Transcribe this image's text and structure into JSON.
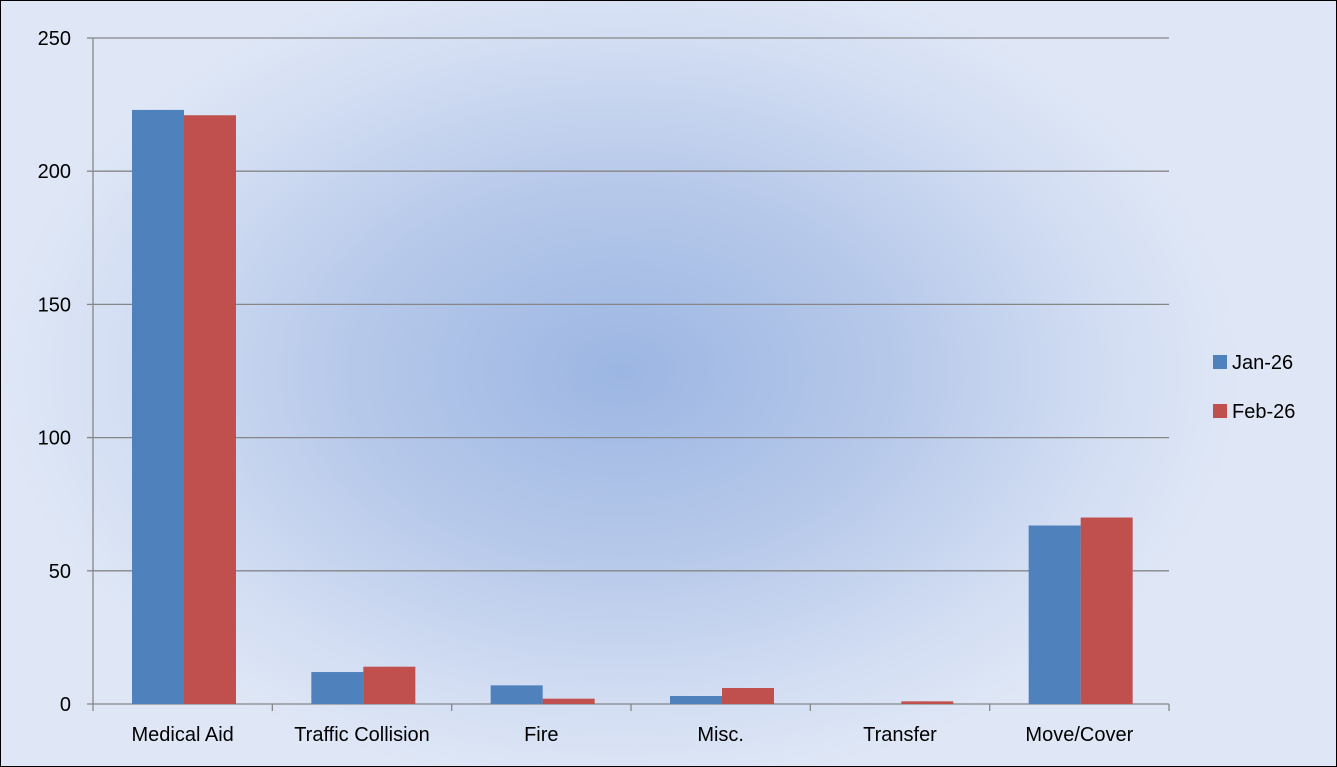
{
  "chart_data": {
    "type": "bar",
    "title": "",
    "xlabel": "",
    "ylabel": "",
    "categories": [
      "Medical Aid",
      "Traffic Collision",
      "Fire",
      "Misc.",
      "Transfer",
      "Move/Cover"
    ],
    "series": [
      {
        "name": "Jan-26",
        "color": "#4f81bd",
        "values": [
          223,
          12,
          7,
          3,
          0,
          67
        ]
      },
      {
        "name": "Feb-26",
        "color": "#c0504d",
        "values": [
          221,
          14,
          2,
          6,
          1,
          70
        ]
      }
    ],
    "ylim": [
      0,
      250
    ],
    "yticks": [
      0,
      50,
      100,
      150,
      200,
      250
    ],
    "grid": true,
    "legend_position": "right"
  }
}
